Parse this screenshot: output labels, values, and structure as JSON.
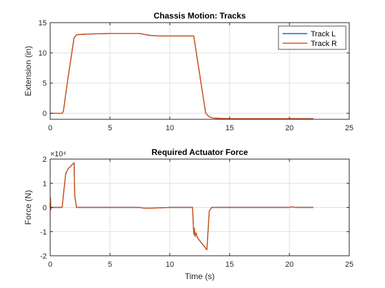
{
  "colors": {
    "track_l": "#0072BD",
    "track_r": "#D95319",
    "axis": "#262626",
    "grid": "#DFDFDF"
  },
  "chart_data": [
    {
      "type": "line",
      "title": "Chassis Motion: Tracks",
      "xlabel": "",
      "ylabel": "Extension (in)",
      "xlim": [
        0,
        25
      ],
      "ylim": [
        -1,
        15
      ],
      "xticks": [
        0,
        5,
        10,
        15,
        20,
        25
      ],
      "yticks": [
        0,
        5,
        10,
        15
      ],
      "grid": true,
      "legend_position": "top-right",
      "series": [
        {
          "name": "Track L",
          "x": [
            0,
            1,
            1.1,
            1.5,
            2,
            2.2,
            3,
            5,
            7.5,
            8,
            8.3,
            9,
            10,
            11,
            12,
            13,
            13.3,
            13.6,
            15,
            18,
            21,
            22
          ],
          "y": [
            0,
            0,
            0.3,
            6,
            12.5,
            13,
            13.1,
            13.2,
            13.2,
            13,
            12.9,
            12.8,
            12.8,
            12.8,
            12.8,
            0,
            -0.6,
            -0.8,
            -0.9,
            -0.9,
            -0.9,
            -0.9
          ]
        },
        {
          "name": "Track R",
          "x": [
            0,
            1,
            1.1,
            1.5,
            2,
            2.2,
            3,
            5,
            7.5,
            8,
            8.3,
            9,
            10,
            11,
            12,
            13,
            13.3,
            13.6,
            15,
            18,
            21,
            22
          ],
          "y": [
            0,
            0,
            0.3,
            6,
            12.5,
            13,
            13.1,
            13.2,
            13.2,
            13,
            12.9,
            12.8,
            12.8,
            12.8,
            12.8,
            0,
            -0.6,
            -0.8,
            -0.9,
            -0.9,
            -0.9,
            -0.9
          ]
        }
      ]
    },
    {
      "type": "line",
      "title": "Required Actuator Force",
      "xlabel": "Time (s)",
      "ylabel": "Force (N)",
      "y_exponent": "×10⁴",
      "xlim": [
        0,
        25
      ],
      "ylim": [
        -2,
        2
      ],
      "xticks": [
        0,
        5,
        10,
        15,
        20,
        25
      ],
      "yticks": [
        -2,
        -1,
        0,
        1,
        2
      ],
      "grid": true,
      "series": [
        {
          "name": "",
          "color": "#0072BD",
          "x": [
            0,
            0.02,
            0.05,
            0.1,
            1,
            1.1,
            1.3,
            1.5,
            2,
            2.05,
            2.2,
            5,
            7.5,
            7.8,
            8.5,
            10,
            11.9,
            12,
            12.05,
            12.1,
            12.2,
            12.25,
            12.3,
            13.1,
            13.3,
            13.5,
            15,
            20,
            20.2,
            20.5,
            22
          ],
          "y": [
            0,
            0.4,
            -0.1,
            0,
            0,
            0.5,
            1.4,
            1.6,
            1.85,
            0.5,
            0,
            0,
            0,
            -0.03,
            -0.03,
            0,
            0,
            -1.1,
            -0.85,
            -1.2,
            -1.05,
            -1.15,
            -1.25,
            -1.75,
            -0.15,
            0,
            0,
            0,
            0.03,
            0,
            0
          ]
        },
        {
          "name": "",
          "color": "#D95319",
          "x": [
            0,
            0.02,
            0.05,
            0.1,
            1,
            1.1,
            1.3,
            1.5,
            2,
            2.05,
            2.2,
            5,
            7.5,
            7.8,
            8.5,
            10,
            11.9,
            12,
            12.05,
            12.1,
            12.2,
            12.25,
            12.3,
            13.1,
            13.3,
            13.5,
            15,
            20,
            20.2,
            20.5,
            22
          ],
          "y": [
            0,
            0.4,
            -0.1,
            0,
            0,
            0.5,
            1.4,
            1.6,
            1.85,
            0.5,
            0,
            0,
            0,
            -0.03,
            -0.03,
            0,
            0,
            -1.1,
            -0.85,
            -1.2,
            -1.05,
            -1.15,
            -1.25,
            -1.75,
            -0.15,
            0,
            0,
            0,
            0.03,
            0,
            0
          ]
        }
      ]
    }
  ]
}
